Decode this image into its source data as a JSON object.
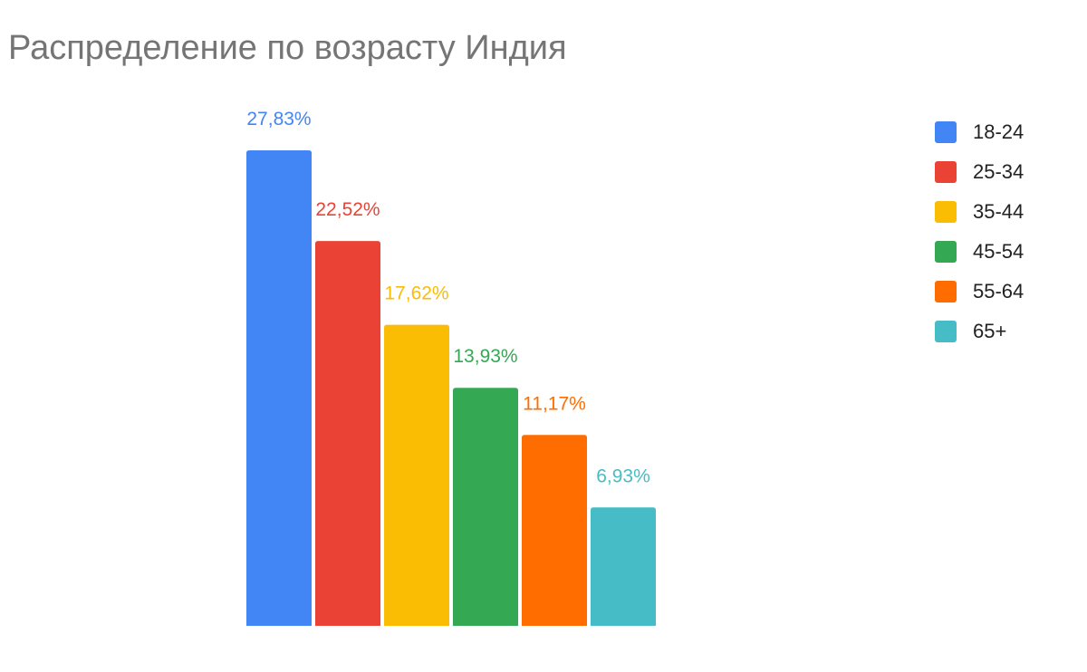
{
  "chart_data": {
    "type": "bar",
    "title": "Распределение по возрасту Индия",
    "categories": [
      "18-24",
      "25-34",
      "35-44",
      "45-54",
      "55-64",
      "65+"
    ],
    "values": [
      27.83,
      22.52,
      17.62,
      13.93,
      11.17,
      6.93
    ],
    "data_labels": [
      "27,83%",
      "22,52%",
      "17,62%",
      "13,93%",
      "11,17%",
      "6,93%"
    ],
    "colors": [
      "#4285f4",
      "#ea4335",
      "#fbbc04",
      "#34a853",
      "#ff6d01",
      "#46bdc6"
    ],
    "legend_position": "right",
    "grid": false,
    "ylim": [
      0,
      27.83
    ]
  }
}
